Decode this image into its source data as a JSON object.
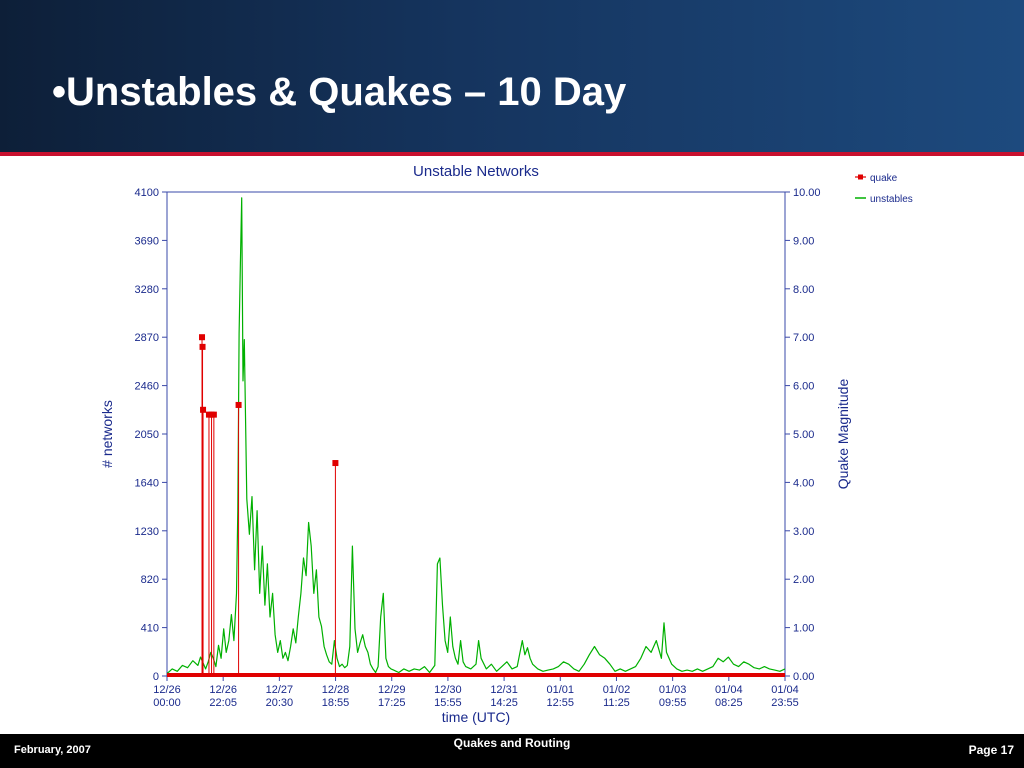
{
  "slide": {
    "title": "•Unstables & Quakes – 10 Day",
    "footer_left": "February, 2007",
    "footer_center": "Quakes and Routing",
    "footer_right": "Page 17"
  },
  "colors": {
    "header_dark": "#0d1f38",
    "header_light": "#1d4a7e",
    "accent_red": "#c8102e",
    "quake": "#e00000",
    "unstables": "#00b000",
    "axis_text": "#1a2a8c"
  },
  "chart_data": {
    "type": "line",
    "title": "Unstable Networks",
    "xlabel": "time (UTC)",
    "ylabel_left": "# networks",
    "ylabel_right": "Quake Magnitude",
    "y_left_ticks": [
      "4100",
      "3690",
      "3280",
      "2870",
      "2460",
      "2050",
      "1640",
      "1230",
      "820",
      "410",
      "0"
    ],
    "y_right_ticks": [
      "10.00",
      "9.00",
      "8.00",
      "7.00",
      "6.00",
      "5.00",
      "4.00",
      "3.00",
      "2.00",
      "1.00",
      "0.00"
    ],
    "ylim_left": [
      0,
      4100
    ],
    "ylim_right": [
      0,
      10
    ],
    "x_ticks": [
      {
        "date": "12/26",
        "time": "00:00"
      },
      {
        "date": "12/26",
        "time": "22:05"
      },
      {
        "date": "12/27",
        "time": "20:30"
      },
      {
        "date": "12/28",
        "time": "18:55"
      },
      {
        "date": "12/29",
        "time": "17:25"
      },
      {
        "date": "12/30",
        "time": "15:55"
      },
      {
        "date": "12/31",
        "time": "14:25"
      },
      {
        "date": "01/01",
        "time": "12:55"
      },
      {
        "date": "01/02",
        "time": "11:25"
      },
      {
        "date": "01/03",
        "time": "09:55"
      },
      {
        "date": "01/04",
        "time": "08:25"
      },
      {
        "date": "01/04",
        "time": "23:55"
      }
    ],
    "xlim_hours": [
      0,
      240
    ],
    "grid": false,
    "legend_position": "top-right",
    "series": [
      {
        "name": "quake",
        "axis": "right",
        "style": "stem-markers",
        "points": [
          {
            "x_hours": 13.6,
            "magnitude": 7.0
          },
          {
            "x_hours": 13.8,
            "magnitude": 6.8
          },
          {
            "x_hours": 14.0,
            "magnitude": 5.5
          },
          {
            "x_hours": 16.3,
            "magnitude": 5.4
          },
          {
            "x_hours": 17.3,
            "magnitude": 5.4
          },
          {
            "x_hours": 18.2,
            "magnitude": 5.4
          },
          {
            "x_hours": 27.8,
            "magnitude": 5.6
          },
          {
            "x_hours": 65.4,
            "magnitude": 4.4
          }
        ]
      },
      {
        "name": "unstables",
        "axis": "left",
        "style": "line",
        "points": [
          [
            0,
            20
          ],
          [
            2,
            60
          ],
          [
            4,
            40
          ],
          [
            6,
            90
          ],
          [
            8,
            70
          ],
          [
            10,
            130
          ],
          [
            12,
            90
          ],
          [
            13,
            160
          ],
          [
            14,
            110
          ],
          [
            15,
            60
          ],
          [
            16,
            120
          ],
          [
            17,
            200
          ],
          [
            18,
            150
          ],
          [
            19,
            80
          ],
          [
            20,
            260
          ],
          [
            21,
            150
          ],
          [
            22,
            400
          ],
          [
            23,
            200
          ],
          [
            24,
            300
          ],
          [
            25,
            520
          ],
          [
            26,
            300
          ],
          [
            27,
            700
          ],
          [
            27.5,
            1400
          ],
          [
            28,
            2900
          ],
          [
            28.5,
            3500
          ],
          [
            29,
            4050
          ],
          [
            29.5,
            2500
          ],
          [
            30,
            2850
          ],
          [
            31,
            1500
          ],
          [
            32,
            1200
          ],
          [
            33,
            1520
          ],
          [
            34,
            900
          ],
          [
            35,
            1400
          ],
          [
            36,
            700
          ],
          [
            37,
            1100
          ],
          [
            38,
            600
          ],
          [
            39,
            950
          ],
          [
            40,
            500
          ],
          [
            41,
            700
          ],
          [
            42,
            350
          ],
          [
            43,
            200
          ],
          [
            44,
            300
          ],
          [
            45,
            150
          ],
          [
            46,
            200
          ],
          [
            47,
            130
          ],
          [
            48,
            250
          ],
          [
            49,
            400
          ],
          [
            50,
            280
          ],
          [
            51,
            500
          ],
          [
            52,
            700
          ],
          [
            53,
            1000
          ],
          [
            54,
            850
          ],
          [
            55,
            1300
          ],
          [
            56,
            1100
          ],
          [
            57,
            700
          ],
          [
            58,
            900
          ],
          [
            59,
            500
          ],
          [
            60,
            420
          ],
          [
            61,
            250
          ],
          [
            62,
            180
          ],
          [
            63,
            120
          ],
          [
            64,
            100
          ],
          [
            65,
            300
          ],
          [
            66,
            150
          ],
          [
            67,
            80
          ],
          [
            68,
            100
          ],
          [
            69,
            70
          ],
          [
            70,
            90
          ],
          [
            71,
            250
          ],
          [
            72,
            1100
          ],
          [
            73,
            400
          ],
          [
            74,
            200
          ],
          [
            75,
            280
          ],
          [
            76,
            350
          ],
          [
            77,
            250
          ],
          [
            78,
            200
          ],
          [
            79,
            100
          ],
          [
            80,
            60
          ],
          [
            81,
            30
          ],
          [
            82,
            80
          ],
          [
            83,
            500
          ],
          [
            84,
            700
          ],
          [
            85,
            150
          ],
          [
            86,
            80
          ],
          [
            87,
            60
          ],
          [
            88,
            50
          ],
          [
            89,
            40
          ],
          [
            90,
            30
          ],
          [
            92,
            60
          ],
          [
            94,
            40
          ],
          [
            96,
            60
          ],
          [
            98,
            50
          ],
          [
            100,
            80
          ],
          [
            102,
            30
          ],
          [
            104,
            90
          ],
          [
            105,
            950
          ],
          [
            106,
            1000
          ],
          [
            107,
            600
          ],
          [
            108,
            300
          ],
          [
            109,
            200
          ],
          [
            110,
            500
          ],
          [
            111,
            250
          ],
          [
            112,
            150
          ],
          [
            113,
            100
          ],
          [
            114,
            300
          ],
          [
            115,
            120
          ],
          [
            116,
            80
          ],
          [
            118,
            60
          ],
          [
            120,
            100
          ],
          [
            121,
            300
          ],
          [
            122,
            150
          ],
          [
            124,
            60
          ],
          [
            126,
            100
          ],
          [
            128,
            40
          ],
          [
            130,
            80
          ],
          [
            132,
            120
          ],
          [
            134,
            60
          ],
          [
            136,
            80
          ],
          [
            138,
            300
          ],
          [
            139,
            180
          ],
          [
            140,
            240
          ],
          [
            141,
            150
          ],
          [
            142,
            100
          ],
          [
            144,
            60
          ],
          [
            146,
            40
          ],
          [
            148,
            50
          ],
          [
            150,
            60
          ],
          [
            152,
            80
          ],
          [
            154,
            120
          ],
          [
            156,
            100
          ],
          [
            158,
            60
          ],
          [
            160,
            40
          ],
          [
            162,
            100
          ],
          [
            164,
            180
          ],
          [
            166,
            250
          ],
          [
            168,
            180
          ],
          [
            170,
            150
          ],
          [
            172,
            100
          ],
          [
            174,
            40
          ],
          [
            176,
            60
          ],
          [
            178,
            40
          ],
          [
            180,
            60
          ],
          [
            182,
            80
          ],
          [
            184,
            150
          ],
          [
            186,
            250
          ],
          [
            188,
            200
          ],
          [
            190,
            300
          ],
          [
            192,
            150
          ],
          [
            193,
            450
          ],
          [
            194,
            200
          ],
          [
            196,
            100
          ],
          [
            198,
            60
          ],
          [
            200,
            40
          ],
          [
            202,
            50
          ],
          [
            204,
            40
          ],
          [
            206,
            60
          ],
          [
            208,
            40
          ],
          [
            210,
            60
          ],
          [
            212,
            80
          ],
          [
            214,
            150
          ],
          [
            216,
            120
          ],
          [
            218,
            160
          ],
          [
            220,
            100
          ],
          [
            222,
            80
          ],
          [
            224,
            120
          ],
          [
            226,
            100
          ],
          [
            228,
            70
          ],
          [
            230,
            60
          ],
          [
            232,
            80
          ],
          [
            234,
            60
          ],
          [
            236,
            50
          ],
          [
            238,
            40
          ],
          [
            240,
            60
          ]
        ]
      }
    ]
  }
}
